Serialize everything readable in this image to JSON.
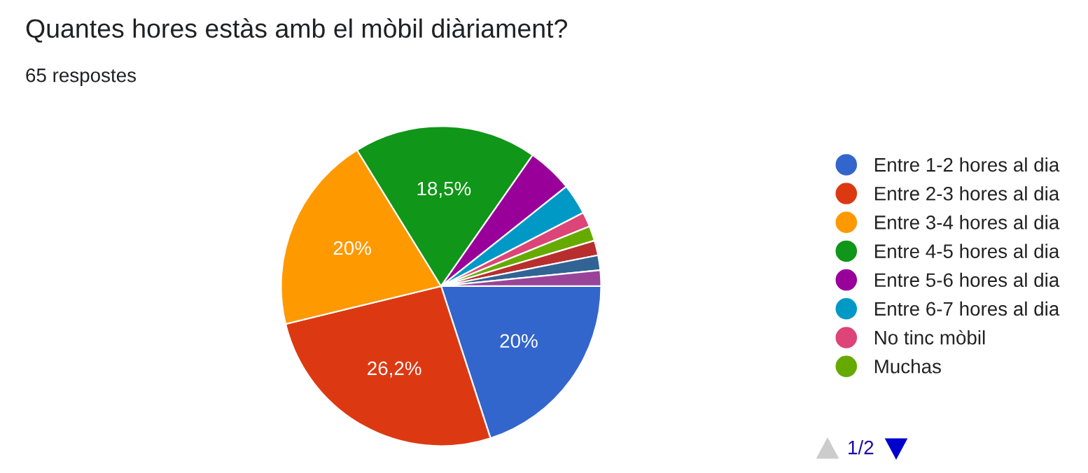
{
  "chart_data": {
    "type": "pie",
    "title": "Quantes hores estàs amb el mòbil diàriament?",
    "subtitle": "65 respostes",
    "categories": [
      "Entre 1-2 hores al dia",
      "Entre 2-3 hores al dia",
      "Entre 3-4 hores al dia",
      "Entre 4-5 hores al dia",
      "Entre 5-6 hores al dia",
      "Entre 6-7 hores al dia",
      "No tinc mòbil",
      "Muchas",
      null,
      null,
      null
    ],
    "values": [
      20,
      26.2,
      20,
      18.5,
      4.6,
      3.1,
      1.5,
      1.5,
      1.5,
      1.5,
      1.6
    ],
    "value_labels": [
      "20%",
      "26,2%",
      "20%",
      "18,5%",
      null,
      null,
      null,
      null,
      null,
      null,
      null
    ],
    "colors": [
      "#3366cc",
      "#dc3912",
      "#ff9900",
      "#109618",
      "#990099",
      "#0099c6",
      "#dd4477",
      "#66aa00",
      "#b82e2e",
      "#316395",
      "#994499"
    ],
    "legend": "right",
    "annotations": [
      "1/2"
    ]
  }
}
